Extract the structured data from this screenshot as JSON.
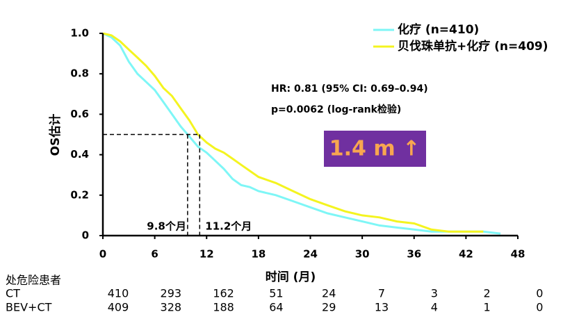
{
  "chart_data": {
    "type": "line",
    "xlabel": "时间 (月)",
    "ylabel": "OS估计",
    "xlim": [
      0,
      48
    ],
    "ylim": [
      0,
      1
    ],
    "xticks": [
      0,
      6,
      12,
      18,
      24,
      30,
      36,
      42,
      48
    ],
    "yticks": [
      0,
      0.2,
      0.4,
      0.6,
      0.8,
      {
        "value": 1,
        "label": "1.0"
      }
    ],
    "legend": "upper right",
    "series": [
      {
        "name": "化疗 (n=410)",
        "color": "#7ef6f6",
        "x": [
          0,
          1,
          2,
          3,
          4,
          5,
          6,
          7,
          8,
          9,
          10,
          11,
          12,
          13,
          14,
          15,
          16,
          17,
          18,
          20,
          22,
          24,
          26,
          28,
          30,
          32,
          34,
          36,
          38,
          40,
          44,
          46
        ],
        "values": [
          1.0,
          0.98,
          0.94,
          0.86,
          0.8,
          0.76,
          0.72,
          0.66,
          0.6,
          0.54,
          0.49,
          0.44,
          0.41,
          0.37,
          0.33,
          0.28,
          0.25,
          0.24,
          0.22,
          0.2,
          0.17,
          0.14,
          0.11,
          0.09,
          0.07,
          0.05,
          0.04,
          0.03,
          0.02,
          0.02,
          0.02,
          0.01
        ]
      },
      {
        "name": "贝伐珠单抗+化疗 (n=409)",
        "color": "#f4f420",
        "x": [
          0,
          1,
          2,
          3,
          4,
          5,
          6,
          7,
          8,
          9,
          10,
          11,
          12,
          13,
          14,
          15,
          16,
          17,
          18,
          20,
          22,
          24,
          26,
          28,
          30,
          32,
          34,
          36,
          38,
          40,
          42,
          44
        ],
        "values": [
          1.0,
          0.99,
          0.96,
          0.92,
          0.88,
          0.84,
          0.79,
          0.73,
          0.69,
          0.63,
          0.57,
          0.5,
          0.46,
          0.43,
          0.41,
          0.38,
          0.35,
          0.32,
          0.29,
          0.26,
          0.22,
          0.18,
          0.15,
          0.12,
          0.1,
          0.09,
          0.07,
          0.06,
          0.03,
          0.02,
          0.02,
          0.02
        ]
      }
    ],
    "median_survival": 0.5,
    "medians": [
      {
        "value": 9.8,
        "label": "9.8个月"
      },
      {
        "value": 11.2,
        "label": "11.2个月"
      }
    ],
    "annotations": [
      "HR: 0.81 (95% CI: 0.69–0.94)",
      "p=0.0062 (log-rank检验)",
      "1.4 m ↑"
    ],
    "risk_table": {
      "title": "处危险患者",
      "rows": [
        {
          "name": "CT",
          "values": [
            "410",
            "293",
            "162",
            "51",
            "24",
            "7",
            "3",
            "2",
            "0"
          ]
        },
        {
          "name": "BEV+CT",
          "values": [
            "409",
            "328",
            "188",
            "64",
            "29",
            "13",
            "4",
            "1",
            "0"
          ]
        }
      ]
    }
  }
}
